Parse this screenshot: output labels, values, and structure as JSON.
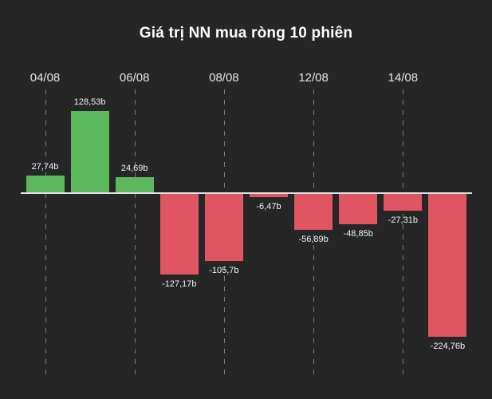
{
  "colors": {
    "background": "#262626",
    "positive_bar": "#5cb85c",
    "negative_bar": "#e05562",
    "zero_line": "#e0e0e0",
    "gridline": "#7c7c7c",
    "title_text": "#ffffff",
    "tick_text": "#e3e3e3",
    "value_text": "#f2f2f2"
  },
  "chart_data": {
    "type": "bar",
    "title": "Giá trị NN mua ròng 10 phiên",
    "unit": "b",
    "x_tick_labels": [
      "04/08",
      "06/08",
      "08/08",
      "12/08",
      "14/08"
    ],
    "x_tick_bar_indices": [
      0,
      2,
      4,
      6,
      8
    ],
    "bars": [
      {
        "value": 27.74,
        "label": "27,74b"
      },
      {
        "value": 128.53,
        "label": "128,53b"
      },
      {
        "value": 24.69,
        "label": "24,69b"
      },
      {
        "value": -127.17,
        "label": "-127,17b"
      },
      {
        "value": -105.7,
        "label": "-105,7b"
      },
      {
        "value": -6.47,
        "label": "-6,47b"
      },
      {
        "value": -56.89,
        "label": "-56,89b"
      },
      {
        "value": -48.85,
        "label": "-48,85b"
      },
      {
        "value": -27.31,
        "label": "-27,31b"
      },
      {
        "value": -224.76,
        "label": "-224,76b"
      }
    ],
    "ylim": [
      -240,
      140
    ],
    "grid": "vertical-dashed",
    "legend_position": "none",
    "xlabel": "",
    "ylabel": ""
  }
}
